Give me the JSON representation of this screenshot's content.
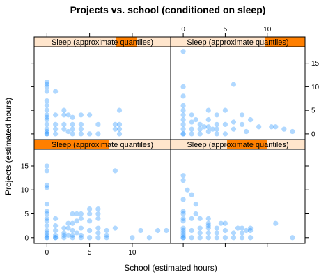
{
  "chart_data": {
    "type": "scatter",
    "title": "Projects vs. school (conditioned on sleep)",
    "xlabel": "School (estimated hours)",
    "ylabel": "Projects (estimated hours)",
    "xlim": [
      -1.5,
      14.5
    ],
    "ylim": [
      -1.2,
      18.5
    ],
    "x_ticks": [
      0,
      5,
      10
    ],
    "y_ticks": [
      0,
      5,
      10,
      15
    ],
    "strip_label": "Sleep (approximate quantiles)",
    "colors": {
      "point": "#1e90ff",
      "strip_bg": "#ffe5cc",
      "strip_bar": "#ff7f00",
      "frame": "#000000"
    },
    "panels": [
      {
        "position": "bottom-left",
        "shingle": [
          0.0,
          0.55
        ],
        "points": [
          [
            0,
            15
          ],
          [
            0,
            14
          ],
          [
            0,
            11
          ],
          [
            0,
            10.5
          ],
          [
            0,
            7
          ],
          [
            0,
            5.5
          ],
          [
            0,
            5
          ],
          [
            0,
            4
          ],
          [
            0,
            3.5
          ],
          [
            0,
            2.5
          ],
          [
            0,
            1.5
          ],
          [
            0,
            1
          ],
          [
            0,
            0.5
          ],
          [
            0,
            0
          ],
          [
            0,
            0
          ],
          [
            1,
            4
          ],
          [
            1,
            2.5
          ],
          [
            1,
            1.5
          ],
          [
            1,
            0.5
          ],
          [
            1,
            0
          ],
          [
            1,
            0
          ],
          [
            2,
            2
          ],
          [
            2,
            1
          ],
          [
            2,
            0.5
          ],
          [
            2,
            0
          ],
          [
            2.5,
            3
          ],
          [
            2.5,
            2
          ],
          [
            2.5,
            0.5
          ],
          [
            3,
            5
          ],
          [
            3,
            3
          ],
          [
            3,
            1.5
          ],
          [
            3,
            0.5
          ],
          [
            3,
            0
          ],
          [
            3.5,
            5
          ],
          [
            3.5,
            3.5
          ],
          [
            3.5,
            1
          ],
          [
            4,
            5
          ],
          [
            4,
            4
          ],
          [
            4,
            2
          ],
          [
            4,
            0.5
          ],
          [
            4,
            0
          ],
          [
            5,
            6
          ],
          [
            5,
            5
          ],
          [
            5,
            3.5
          ],
          [
            5,
            1.5
          ],
          [
            5,
            0
          ],
          [
            6,
            6
          ],
          [
            6,
            5
          ],
          [
            6,
            4
          ],
          [
            6,
            2
          ],
          [
            6,
            1
          ],
          [
            6,
            0
          ],
          [
            7,
            1.5
          ],
          [
            7,
            0.5
          ],
          [
            7,
            0
          ],
          [
            8,
            14
          ],
          [
            8,
            2
          ],
          [
            10,
            0
          ],
          [
            11,
            1.5
          ],
          [
            12,
            0
          ],
          [
            13,
            1.5
          ],
          [
            14,
            1.5
          ]
        ]
      },
      {
        "position": "bottom-right",
        "shingle": [
          0.42,
          0.72
        ],
        "points": [
          [
            0,
            13
          ],
          [
            0,
            12
          ],
          [
            0,
            8
          ],
          [
            0,
            5.5
          ],
          [
            0,
            5
          ],
          [
            0,
            4
          ],
          [
            0,
            3.5
          ],
          [
            0,
            2
          ],
          [
            0,
            1.5
          ],
          [
            0,
            1
          ],
          [
            0,
            0.5
          ],
          [
            0,
            0
          ],
          [
            0,
            0
          ],
          [
            0.5,
            10
          ],
          [
            1,
            9
          ],
          [
            1,
            4
          ],
          [
            1,
            1.5
          ],
          [
            1,
            0
          ],
          [
            1.5,
            7
          ],
          [
            1.5,
            5
          ],
          [
            2,
            4
          ],
          [
            2,
            2
          ],
          [
            2,
            1
          ],
          [
            2,
            0
          ],
          [
            3,
            4
          ],
          [
            3,
            3
          ],
          [
            3,
            2.5
          ],
          [
            3,
            2
          ],
          [
            3,
            1
          ],
          [
            3,
            0
          ],
          [
            4,
            2
          ],
          [
            4,
            1
          ],
          [
            4,
            0
          ],
          [
            4.5,
            3
          ],
          [
            5,
            3
          ],
          [
            5,
            1.5
          ],
          [
            5,
            0
          ],
          [
            6,
            1
          ],
          [
            6,
            0
          ],
          [
            6.5,
            2
          ],
          [
            7,
            2
          ],
          [
            7,
            1
          ],
          [
            7,
            0
          ],
          [
            7.5,
            1.5
          ],
          [
            8,
            2
          ],
          [
            8,
            1.5
          ],
          [
            8,
            0
          ],
          [
            11,
            3
          ],
          [
            13,
            0
          ]
        ]
      },
      {
        "position": "top-left",
        "shingle": [
          0.6,
          0.75
        ],
        "points": [
          [
            0,
            11
          ],
          [
            0,
            10.5
          ],
          [
            0,
            10
          ],
          [
            0,
            9
          ],
          [
            0,
            7
          ],
          [
            0,
            6
          ],
          [
            0,
            5
          ],
          [
            0,
            4
          ],
          [
            0,
            3.5
          ],
          [
            0,
            3
          ],
          [
            0,
            2
          ],
          [
            0,
            1
          ],
          [
            0,
            0.5
          ],
          [
            0,
            0
          ],
          [
            0,
            0
          ],
          [
            1,
            9
          ],
          [
            1,
            4
          ],
          [
            1,
            2
          ],
          [
            1,
            1
          ],
          [
            1,
            0
          ],
          [
            2,
            5
          ],
          [
            2,
            4
          ],
          [
            2,
            2
          ],
          [
            2,
            1
          ],
          [
            2.5,
            4
          ],
          [
            2.5,
            0.5
          ],
          [
            3,
            3.5
          ],
          [
            3,
            2
          ],
          [
            3,
            1
          ],
          [
            3,
            0
          ],
          [
            4,
            4
          ],
          [
            4,
            2
          ],
          [
            4,
            1
          ],
          [
            4,
            0
          ],
          [
            5,
            4
          ],
          [
            5,
            0
          ],
          [
            6,
            2
          ],
          [
            6,
            0
          ],
          [
            8,
            2
          ],
          [
            8,
            1
          ],
          [
            8.5,
            5
          ],
          [
            8.5,
            2
          ],
          [
            8.5,
            1
          ],
          [
            8.5,
            0
          ]
        ]
      },
      {
        "position": "top-right",
        "shingle": [
          0.7,
          1.0
        ],
        "points": [
          [
            0,
            17.5
          ],
          [
            0,
            10
          ],
          [
            0,
            8
          ],
          [
            0,
            6
          ],
          [
            0,
            5
          ],
          [
            0,
            4
          ],
          [
            0,
            3
          ],
          [
            0,
            2
          ],
          [
            0,
            1
          ],
          [
            0,
            0
          ],
          [
            0,
            0
          ],
          [
            1,
            4
          ],
          [
            1,
            2.5
          ],
          [
            1,
            1
          ],
          [
            1,
            0
          ],
          [
            1.5,
            3
          ],
          [
            2,
            2
          ],
          [
            2,
            1
          ],
          [
            2,
            0
          ],
          [
            2.5,
            1.5
          ],
          [
            3,
            5
          ],
          [
            3,
            3
          ],
          [
            3,
            1.5
          ],
          [
            3,
            0.5
          ],
          [
            3.5,
            1
          ],
          [
            4,
            4
          ],
          [
            4,
            2
          ],
          [
            4,
            1
          ],
          [
            4,
            0
          ],
          [
            5,
            5
          ],
          [
            5,
            2
          ],
          [
            5,
            0
          ],
          [
            6,
            10.5
          ],
          [
            6,
            2.5
          ],
          [
            6,
            1
          ],
          [
            7,
            4
          ],
          [
            7,
            2
          ],
          [
            7.5,
            0.5
          ],
          [
            8,
            3
          ],
          [
            9,
            1.5
          ],
          [
            10.5,
            1.5
          ],
          [
            11,
            1.5
          ],
          [
            12,
            1
          ],
          [
            13,
            0.5
          ]
        ]
      }
    ]
  }
}
